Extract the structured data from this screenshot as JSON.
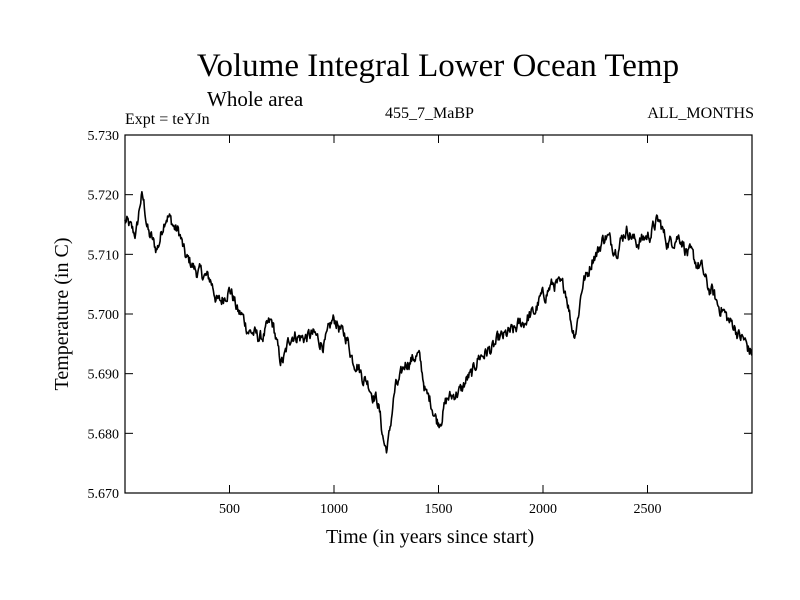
{
  "chart_data": {
    "type": "line",
    "title": "Volume Integral Lower Ocean Temp",
    "subtitle": "Whole area",
    "expt_label": "Expt = teYJn",
    "run_label": "455_7_MaBP",
    "months_label": "ALL_MONTHS",
    "xlabel": "Time (in years since start)",
    "ylabel": "Temperature (in C)",
    "xlim": [
      0,
      3000
    ],
    "ylim": [
      5.67,
      5.73
    ],
    "xticks": [
      500,
      1000,
      1500,
      2000,
      2500
    ],
    "yticks": [
      "5.670",
      "5.680",
      "5.690",
      "5.700",
      "5.710",
      "5.720",
      "5.730"
    ],
    "grid": false,
    "series": [
      {
        "name": "Temperature",
        "color": "#000000",
        "x": [
          0,
          50,
          80,
          120,
          150,
          200,
          250,
          300,
          350,
          400,
          450,
          500,
          550,
          600,
          650,
          700,
          750,
          800,
          850,
          900,
          950,
          1000,
          1050,
          1100,
          1150,
          1200,
          1250,
          1300,
          1350,
          1400,
          1450,
          1500,
          1550,
          1600,
          1650,
          1700,
          1750,
          1800,
          1850,
          1900,
          1950,
          2000,
          2050,
          2100,
          2150,
          2200,
          2250,
          2300,
          2350,
          2400,
          2450,
          2500,
          2550,
          2600,
          2650,
          2700,
          2750,
          2800,
          2850,
          2900,
          2950,
          3000
        ],
        "values": [
          5.7155,
          5.7135,
          5.7195,
          5.713,
          5.711,
          5.7165,
          5.714,
          5.709,
          5.707,
          5.706,
          5.702,
          5.704,
          5.7,
          5.697,
          5.696,
          5.6985,
          5.692,
          5.6965,
          5.696,
          5.6965,
          5.695,
          5.699,
          5.6965,
          5.692,
          5.689,
          5.686,
          5.6775,
          5.688,
          5.692,
          5.693,
          5.686,
          5.682,
          5.686,
          5.687,
          5.6895,
          5.693,
          5.694,
          5.696,
          5.697,
          5.6985,
          5.7,
          5.703,
          5.705,
          5.7045,
          5.697,
          5.706,
          5.71,
          5.713,
          5.711,
          5.714,
          5.712,
          5.713,
          5.7155,
          5.712,
          5.713,
          5.71,
          5.708,
          5.704,
          5.701,
          5.6985,
          5.696,
          5.6935
        ]
      }
    ]
  }
}
